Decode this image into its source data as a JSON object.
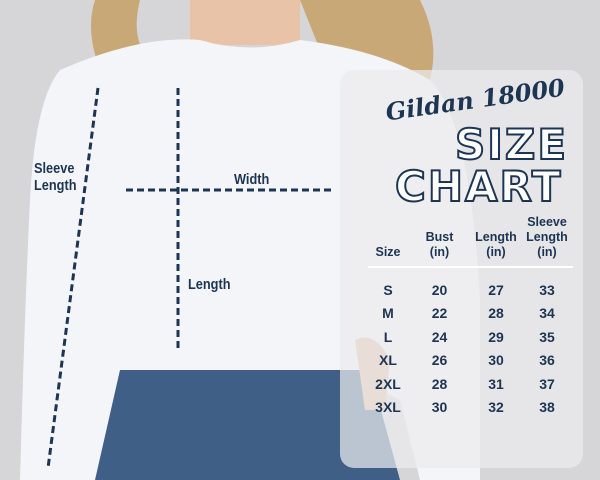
{
  "brand": "Gildan 18000",
  "title": [
    "SIZE",
    "CHART"
  ],
  "measure_labels": {
    "sleeve": [
      "Sleeve",
      "Length"
    ],
    "width": "Width",
    "length": "Length"
  },
  "table": {
    "headers": [
      [
        "Size"
      ],
      [
        "Bust",
        "(in)"
      ],
      [
        "Length",
        "(in)"
      ],
      [
        "Sleeve",
        "Length",
        "(in)"
      ]
    ],
    "rows": [
      [
        "S",
        "20",
        "27",
        "33"
      ],
      [
        "M",
        "22",
        "28",
        "34"
      ],
      [
        "L",
        "24",
        "29",
        "35"
      ],
      [
        "XL",
        "26",
        "30",
        "36"
      ],
      [
        "2XL",
        "28",
        "31",
        "37"
      ],
      [
        "3XL",
        "30",
        "32",
        "38"
      ]
    ]
  },
  "colors": {
    "text": "#1c3553",
    "background": "#d6d6d8",
    "sweatshirt": "#f4f5f8",
    "jeans": "#3f5f86"
  }
}
